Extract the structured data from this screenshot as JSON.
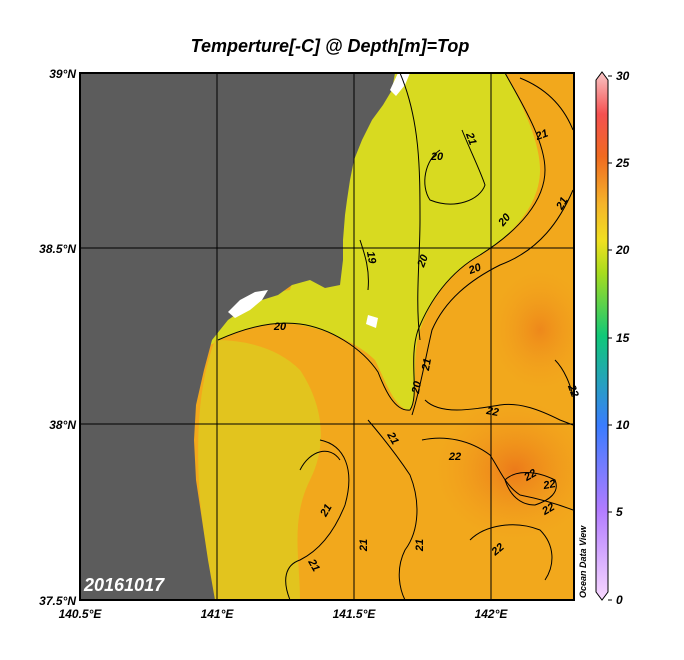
{
  "title": "Temperture[-C] @ Depth[m]=Top",
  "lat_ticks": [
    "39°N",
    "38.5°N",
    "38°N",
    "37.5°N"
  ],
  "lon_ticks": [
    "140.5°E",
    "141°E",
    "141.5°E",
    "142°E"
  ],
  "colorbar": {
    "ticks": [
      "30",
      "25",
      "20",
      "15",
      "10",
      "5",
      "0"
    ]
  },
  "date_label": "20161017",
  "credit": "Ocean Data View",
  "contour_labels": [
    "20",
    "21",
    "20",
    "21",
    "20",
    "19",
    "20",
    "20",
    "21",
    "20",
    "21",
    "22",
    "22",
    "21",
    "22",
    "22",
    "22",
    "21",
    "21",
    "21",
    "22",
    "22",
    "21"
  ],
  "colors": {
    "land": "#5c5c5c",
    "warm": "#f2a01a",
    "cool": "#d6dc1e"
  },
  "chart_data": {
    "type": "heatmap",
    "title": "Temperture[-C] @ Depth[m]=Top",
    "variable": "Temperture[-C]",
    "depth": "Top",
    "lon_range": [
      140.5,
      142.3
    ],
    "lat_range": [
      37.5,
      39.0
    ],
    "colorbar_range": [
      0,
      30
    ],
    "contour_levels": [
      19,
      20,
      21,
      22
    ]
  }
}
